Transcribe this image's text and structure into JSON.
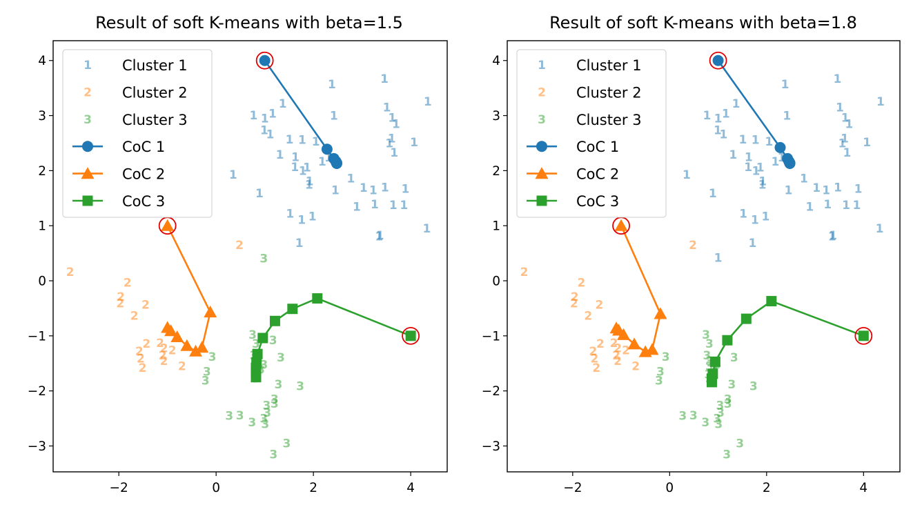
{
  "chart_data": [
    {
      "type": "scatter",
      "title": "Result of soft K-means with beta=1.5",
      "xlabel": "",
      "ylabel": "",
      "xlim": [
        -3.35,
        4.75
      ],
      "ylim": [
        -3.47,
        4.36
      ],
      "xticks": [
        -2,
        0,
        2,
        4
      ],
      "yticks": [
        -3,
        -2,
        -1,
        0,
        1,
        2,
        3,
        4
      ],
      "xtick_labels": [
        "−2",
        "0",
        "2",
        "4"
      ],
      "ytick_labels": [
        "−3",
        "−2",
        "−1",
        "0",
        "1",
        "2",
        "3",
        "4"
      ],
      "grid": false,
      "legend_position": "upper-left",
      "legend": [
        "Cluster 1",
        "Cluster 2",
        "Cluster 3",
        "CoC 1",
        "CoC 2",
        "CoC 3"
      ],
      "clusters": [
        {
          "name": "Cluster 1",
          "marker": "1",
          "color": "#1f77b4",
          "points": [
            [
              2.38,
              3.57
            ],
            [
              1.37,
              3.22
            ],
            [
              1.16,
              3.04
            ],
            [
              0.77,
              3.01
            ],
            [
              1.0,
              2.95
            ],
            [
              2.42,
              3.0
            ],
            [
              0.99,
              2.74
            ],
            [
              1.11,
              2.66
            ],
            [
              1.51,
              2.57
            ],
            [
              1.77,
              2.56
            ],
            [
              2.05,
              2.53
            ],
            [
              1.31,
              2.29
            ],
            [
              1.63,
              2.25
            ],
            [
              2.18,
              2.17
            ],
            [
              2.31,
              2.24
            ],
            [
              1.62,
              2.07
            ],
            [
              1.78,
              2.0
            ],
            [
              1.87,
              2.06
            ],
            [
              1.92,
              1.81
            ],
            [
              1.91,
              1.75
            ],
            [
              2.45,
              1.65
            ],
            [
              0.35,
              1.93
            ],
            [
              0.89,
              1.59
            ],
            [
              3.46,
              3.67
            ],
            [
              3.51,
              3.15
            ],
            [
              3.62,
              2.96
            ],
            [
              3.7,
              2.85
            ],
            [
              4.35,
              3.26
            ],
            [
              3.61,
              2.59
            ],
            [
              3.56,
              2.5
            ],
            [
              4.07,
              2.52
            ],
            [
              3.66,
              2.33
            ],
            [
              2.77,
              1.86
            ],
            [
              3.03,
              1.69
            ],
            [
              3.23,
              1.65
            ],
            [
              3.47,
              1.7
            ],
            [
              3.89,
              1.67
            ],
            [
              2.89,
              1.35
            ],
            [
              3.26,
              1.39
            ],
            [
              3.64,
              1.38
            ],
            [
              3.86,
              1.38
            ],
            [
              1.52,
              1.22
            ],
            [
              1.76,
              1.11
            ],
            [
              1.98,
              1.17
            ],
            [
              1.71,
              0.69
            ],
            [
              3.35,
              0.81
            ],
            [
              3.37,
              0.83
            ],
            [
              4.33,
              0.95
            ]
          ]
        },
        {
          "name": "Cluster 2",
          "marker": "2",
          "color": "#ff7f0e",
          "points": [
            [
              -3.0,
              0.16
            ],
            [
              -1.82,
              -0.03
            ],
            [
              -1.96,
              -0.29
            ],
            [
              -1.97,
              -0.41
            ],
            [
              -1.45,
              -0.43
            ],
            [
              -1.68,
              -0.63
            ],
            [
              -1.43,
              -1.14
            ],
            [
              -1.15,
              -1.13
            ],
            [
              -1.07,
              -1.22
            ],
            [
              -1.1,
              -1.35
            ],
            [
              -0.9,
              -1.26
            ],
            [
              -1.58,
              -1.28
            ],
            [
              -1.55,
              -1.41
            ],
            [
              -1.51,
              -1.58
            ],
            [
              -0.7,
              -1.55
            ],
            [
              -1.07,
              -1.45
            ],
            [
              0.48,
              0.65
            ]
          ]
        },
        {
          "name": "Cluster 3",
          "marker": "3",
          "color": "#2ca02c",
          "points": [
            [
              0.98,
              0.41
            ],
            [
              0.75,
              -0.98
            ],
            [
              0.82,
              -1.14
            ],
            [
              1.17,
              -1.08
            ],
            [
              0.77,
              -1.35
            ],
            [
              0.82,
              -1.45
            ],
            [
              0.98,
              -1.52
            ],
            [
              0.82,
              -1.55
            ],
            [
              0.92,
              -1.61
            ],
            [
              0.8,
              -1.7
            ],
            [
              0.82,
              -1.77
            ],
            [
              1.33,
              -1.39
            ],
            [
              -0.08,
              -1.38
            ],
            [
              -0.19,
              -1.65
            ],
            [
              -0.22,
              -1.81
            ],
            [
              1.28,
              -1.88
            ],
            [
              1.73,
              -1.91
            ],
            [
              1.2,
              -2.15
            ],
            [
              1.2,
              -2.23
            ],
            [
              1.04,
              -2.26
            ],
            [
              1.05,
              -2.39
            ],
            [
              0.98,
              -2.5
            ],
            [
              1.01,
              -2.6
            ],
            [
              0.27,
              -2.45
            ],
            [
              0.49,
              -2.44
            ],
            [
              0.74,
              -2.57
            ],
            [
              1.45,
              -2.95
            ],
            [
              1.18,
              -3.15
            ]
          ]
        }
      ],
      "centers_of_cluster": [
        {
          "name": "CoC 1",
          "marker": "circle",
          "color": "#1f77b4",
          "path": [
            [
              1.0,
              4.0
            ],
            [
              2.28,
              2.39
            ],
            [
              2.42,
              2.22
            ],
            [
              2.46,
              2.17
            ],
            [
              2.47,
              2.15
            ],
            [
              2.48,
              2.14
            ],
            [
              2.48,
              2.13
            ]
          ]
        },
        {
          "name": "CoC 2",
          "marker": "triangle",
          "color": "#ff7f0e",
          "path": [
            [
              -1.0,
              1.0
            ],
            [
              -0.12,
              -0.57
            ],
            [
              -0.29,
              -1.21
            ],
            [
              -0.42,
              -1.28
            ],
            [
              -0.6,
              -1.18
            ],
            [
              -0.8,
              -1.02
            ],
            [
              -0.93,
              -0.91
            ],
            [
              -1.0,
              -0.85
            ]
          ]
        },
        {
          "name": "CoC 3",
          "marker": "square",
          "color": "#2ca02c",
          "path": [
            [
              4.0,
              -1.0
            ],
            [
              2.08,
              -0.32
            ],
            [
              1.57,
              -0.51
            ],
            [
              1.21,
              -0.73
            ],
            [
              0.96,
              -1.04
            ],
            [
              0.85,
              -1.33
            ],
            [
              0.83,
              -1.48
            ],
            [
              0.82,
              -1.58
            ],
            [
              0.82,
              -1.67
            ],
            [
              0.82,
              -1.75
            ]
          ]
        }
      ],
      "initial_center_color": "#e00000"
    },
    {
      "type": "scatter",
      "title": "Result of soft K-means with beta=1.8",
      "xlabel": "",
      "ylabel": "",
      "xlim": [
        -3.35,
        4.75
      ],
      "ylim": [
        -3.47,
        4.36
      ],
      "xticks": [
        -2,
        0,
        2,
        4
      ],
      "yticks": [
        -3,
        -2,
        -1,
        0,
        1,
        2,
        3,
        4
      ],
      "xtick_labels": [
        "−2",
        "0",
        "2",
        "4"
      ],
      "ytick_labels": [
        "−3",
        "−2",
        "−1",
        "0",
        "1",
        "2",
        "3",
        "4"
      ],
      "grid": false,
      "legend_position": "upper-left",
      "legend": [
        "Cluster 1",
        "Cluster 2",
        "Cluster 3",
        "CoC 1",
        "CoC 2",
        "CoC 3"
      ],
      "clusters": [
        {
          "name": "Cluster 1",
          "marker": "1",
          "color": "#1f77b4",
          "points": [
            [
              2.38,
              3.57
            ],
            [
              1.37,
              3.22
            ],
            [
              1.16,
              3.04
            ],
            [
              0.77,
              3.01
            ],
            [
              1.0,
              2.95
            ],
            [
              2.42,
              3.0
            ],
            [
              0.99,
              2.74
            ],
            [
              1.11,
              2.66
            ],
            [
              1.51,
              2.57
            ],
            [
              1.77,
              2.56
            ],
            [
              2.05,
              2.53
            ],
            [
              1.31,
              2.29
            ],
            [
              1.63,
              2.25
            ],
            [
              2.18,
              2.17
            ],
            [
              2.31,
              2.24
            ],
            [
              1.62,
              2.07
            ],
            [
              1.78,
              2.0
            ],
            [
              1.87,
              2.06
            ],
            [
              1.92,
              1.81
            ],
            [
              1.91,
              1.75
            ],
            [
              2.45,
              1.65
            ],
            [
              0.35,
              1.93
            ],
            [
              0.89,
              1.59
            ],
            [
              3.46,
              3.67
            ],
            [
              3.51,
              3.15
            ],
            [
              3.62,
              2.96
            ],
            [
              3.7,
              2.85
            ],
            [
              4.35,
              3.26
            ],
            [
              3.61,
              2.59
            ],
            [
              3.56,
              2.5
            ],
            [
              4.07,
              2.52
            ],
            [
              3.66,
              2.33
            ],
            [
              2.77,
              1.86
            ],
            [
              3.03,
              1.69
            ],
            [
              3.23,
              1.65
            ],
            [
              3.47,
              1.7
            ],
            [
              3.89,
              1.67
            ],
            [
              2.89,
              1.35
            ],
            [
              3.26,
              1.39
            ],
            [
              3.64,
              1.38
            ],
            [
              3.86,
              1.38
            ],
            [
              1.52,
              1.22
            ],
            [
              1.76,
              1.11
            ],
            [
              1.98,
              1.17
            ],
            [
              1.71,
              0.69
            ],
            [
              3.35,
              0.81
            ],
            [
              3.37,
              0.83
            ],
            [
              4.33,
              0.95
            ],
            [
              1.0,
              0.42
            ]
          ]
        },
        {
          "name": "Cluster 2",
          "marker": "2",
          "color": "#ff7f0e",
          "points": [
            [
              -3.0,
              0.16
            ],
            [
              -1.82,
              -0.03
            ],
            [
              -1.96,
              -0.29
            ],
            [
              -1.97,
              -0.41
            ],
            [
              -1.45,
              -0.43
            ],
            [
              -1.68,
              -0.63
            ],
            [
              -1.43,
              -1.14
            ],
            [
              -1.15,
              -1.13
            ],
            [
              -1.07,
              -1.22
            ],
            [
              -1.1,
              -1.35
            ],
            [
              -0.9,
              -1.26
            ],
            [
              -1.58,
              -1.28
            ],
            [
              -1.55,
              -1.41
            ],
            [
              -1.51,
              -1.58
            ],
            [
              -0.7,
              -1.55
            ],
            [
              -1.07,
              -1.45
            ],
            [
              0.48,
              0.65
            ]
          ]
        },
        {
          "name": "Cluster 3",
          "marker": "3",
          "color": "#2ca02c",
          "points": [
            [
              0.75,
              -0.98
            ],
            [
              0.82,
              -1.14
            ],
            [
              1.17,
              -1.08
            ],
            [
              0.77,
              -1.35
            ],
            [
              0.82,
              -1.45
            ],
            [
              0.98,
              -1.52
            ],
            [
              0.82,
              -1.55
            ],
            [
              0.92,
              -1.61
            ],
            [
              0.8,
              -1.7
            ],
            [
              0.82,
              -1.77
            ],
            [
              1.33,
              -1.39
            ],
            [
              -0.08,
              -1.38
            ],
            [
              -0.19,
              -1.65
            ],
            [
              -0.22,
              -1.81
            ],
            [
              1.28,
              -1.88
            ],
            [
              1.73,
              -1.91
            ],
            [
              1.2,
              -2.15
            ],
            [
              1.2,
              -2.23
            ],
            [
              1.04,
              -2.26
            ],
            [
              1.05,
              -2.39
            ],
            [
              0.98,
              -2.5
            ],
            [
              1.01,
              -2.6
            ],
            [
              0.27,
              -2.45
            ],
            [
              0.49,
              -2.44
            ],
            [
              0.74,
              -2.57
            ],
            [
              1.45,
              -2.95
            ],
            [
              1.18,
              -3.15
            ]
          ]
        }
      ],
      "centers_of_cluster": [
        {
          "name": "CoC 1",
          "marker": "circle",
          "color": "#1f77b4",
          "path": [
            [
              1.0,
              4.0
            ],
            [
              2.28,
              2.42
            ],
            [
              2.43,
              2.22
            ],
            [
              2.46,
              2.17
            ],
            [
              2.47,
              2.15
            ],
            [
              2.48,
              2.14
            ],
            [
              2.48,
              2.13
            ]
          ]
        },
        {
          "name": "CoC 2",
          "marker": "triangle",
          "color": "#ff7f0e",
          "path": [
            [
              -1.0,
              1.0
            ],
            [
              -0.19,
              -0.6
            ],
            [
              -0.36,
              -1.25
            ],
            [
              -0.5,
              -1.29
            ],
            [
              -0.73,
              -1.15
            ],
            [
              -0.95,
              -0.98
            ],
            [
              -1.05,
              -0.9
            ],
            [
              -1.1,
              -0.86
            ]
          ]
        },
        {
          "name": "CoC 3",
          "marker": "square",
          "color": "#2ca02c",
          "path": [
            [
              4.0,
              -1.0
            ],
            [
              2.1,
              -0.37
            ],
            [
              1.58,
              -0.69
            ],
            [
              1.19,
              -1.08
            ],
            [
              0.94,
              -1.47
            ],
            [
              0.89,
              -1.69
            ],
            [
              0.87,
              -1.78
            ],
            [
              0.87,
              -1.84
            ]
          ]
        }
      ],
      "initial_center_color": "#e00000"
    }
  ]
}
